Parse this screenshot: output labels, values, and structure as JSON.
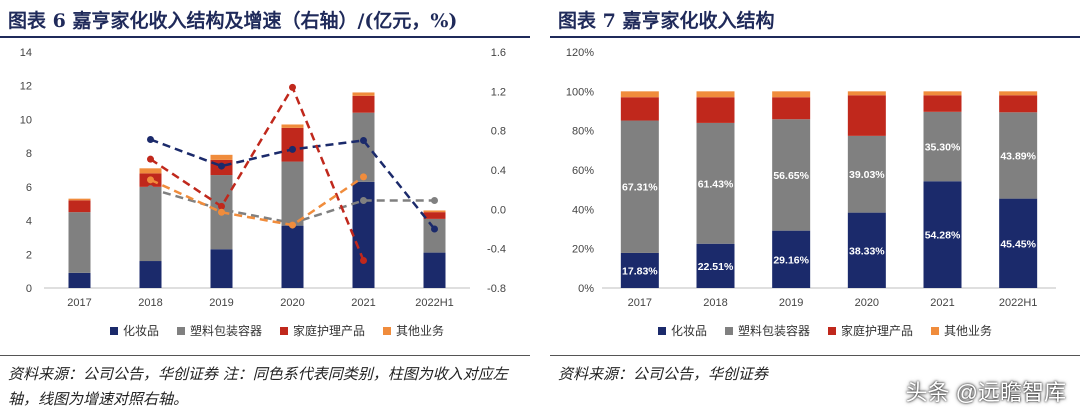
{
  "left_panel": {
    "title": "图表 6   嘉亨家化收入结构及增速（右轴）/(亿元，%)",
    "source": "资料来源：公司公告，华创证券 注：同色系代表同类别，柱图为收入对应左轴，线图为增速对照右轴。"
  },
  "right_panel": {
    "title": "图表 7   嘉亨家化收入结构",
    "source": "资料来源：公司公告，华创证券"
  },
  "watermark": "头条 @远瞻智库",
  "colors": {
    "cosmetics": "#1b2a6b",
    "plastic": "#808080",
    "household": "#c0281c",
    "other": "#f08c3c",
    "title": "#1f2a5a"
  },
  "legend": [
    "化妆品",
    "塑料包装容器",
    "家庭护理产品",
    "其他业务"
  ],
  "chart_data": [
    {
      "type": "bar",
      "stacked": true,
      "categories": [
        "2017",
        "2018",
        "2019",
        "2020",
        "2021",
        "2022H1"
      ],
      "ylim": [
        0,
        14
      ],
      "yticks": [
        "0",
        "2",
        "4",
        "6",
        "8",
        "10",
        "12",
        "14"
      ],
      "y2lim": [
        -0.8,
        1.6
      ],
      "y2ticks": [
        "-0.8",
        "-0.4",
        "0.0",
        "0.4",
        "0.8",
        "1.2",
        "1.6"
      ],
      "series": [
        {
          "name": "化妆品",
          "values": [
            0.9,
            1.6,
            2.3,
            3.7,
            6.3,
            2.1
          ]
        },
        {
          "name": "塑料包装容器",
          "values": [
            3.6,
            4.4,
            4.4,
            3.8,
            4.1,
            2.0
          ]
        },
        {
          "name": "家庭护理产品",
          "values": [
            0.7,
            0.8,
            0.9,
            2.0,
            1.0,
            0.4
          ]
        },
        {
          "name": "其他业务",
          "values": [
            0.1,
            0.3,
            0.3,
            0.2,
            0.2,
            0.1
          ]
        }
      ],
      "growth_series": [
        {
          "name": "化妆品",
          "values": [
            null,
            0.71,
            0.44,
            0.61,
            0.7,
            -0.2
          ]
        },
        {
          "name": "塑料包装容器",
          "values": [
            null,
            0.21,
            0.0,
            -0.14,
            0.09,
            0.09
          ]
        },
        {
          "name": "家庭护理产品",
          "values": [
            null,
            0.51,
            0.03,
            1.24,
            -0.52,
            null
          ]
        },
        {
          "name": "其他业务",
          "values": [
            null,
            0.3,
            -0.03,
            -0.16,
            0.33,
            null
          ]
        }
      ]
    },
    {
      "type": "bar",
      "stacked": true,
      "percent": true,
      "categories": [
        "2017",
        "2018",
        "2019",
        "2020",
        "2021",
        "2022H1"
      ],
      "ylim": [
        0,
        120
      ],
      "yticks": [
        "0%",
        "20%",
        "40%",
        "60%",
        "80%",
        "100%",
        "120%"
      ],
      "series": [
        {
          "name": "化妆品",
          "values": [
            17.83,
            22.51,
            29.16,
            38.33,
            54.28,
            45.45
          ],
          "labels": [
            "17.83%",
            "22.51%",
            "29.16%",
            "38.33%",
            "54.28%",
            "45.45%"
          ]
        },
        {
          "name": "塑料包装容器",
          "values": [
            67.31,
            61.43,
            56.65,
            39.03,
            35.3,
            43.89
          ],
          "labels": [
            "67.31%",
            "61.43%",
            "56.65%",
            "39.03%",
            "35.30%",
            "43.89%"
          ]
        },
        {
          "name": "家庭护理产品",
          "values": [
            11.86,
            13.06,
            11.19,
            20.64,
            8.42,
            8.66
          ]
        },
        {
          "name": "其他业务",
          "values": [
            3.0,
            3.0,
            3.0,
            2.0,
            2.0,
            2.0
          ]
        }
      ]
    }
  ]
}
